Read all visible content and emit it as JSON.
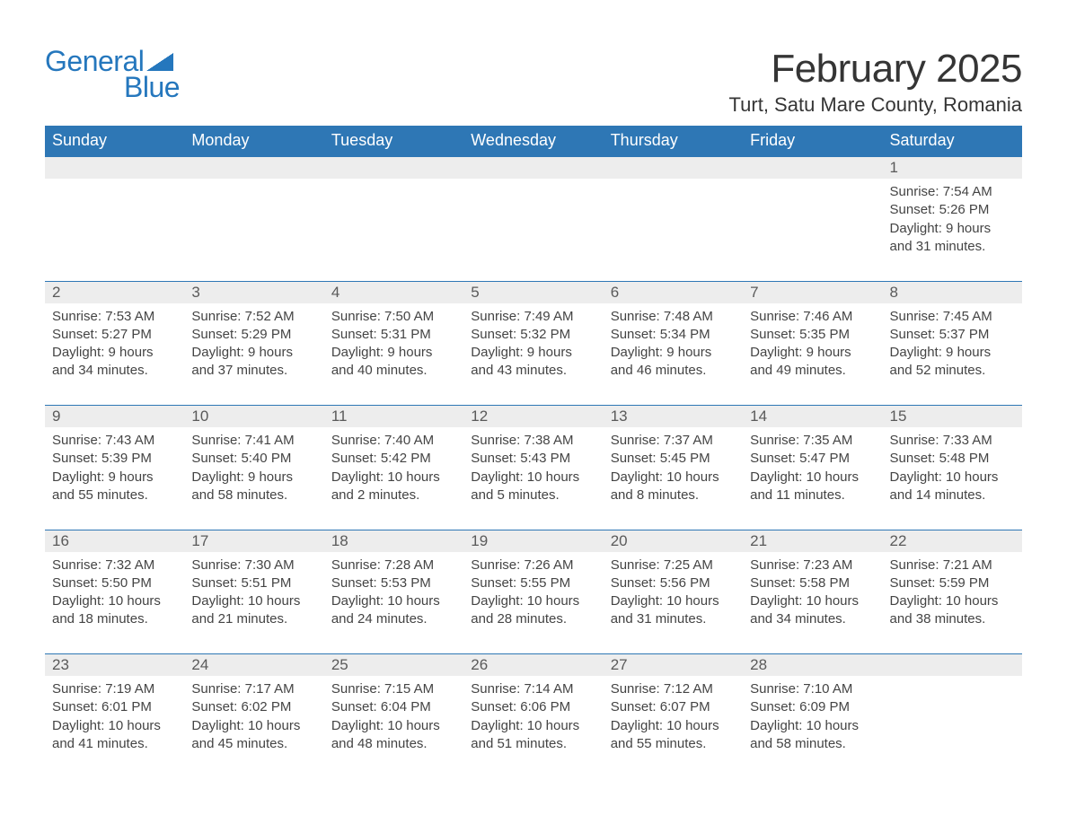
{
  "brand": {
    "word1": "General",
    "word2": "Blue",
    "brand_color": "#2577bd"
  },
  "title": "February 2025",
  "location": "Turt, Satu Mare County, Romania",
  "colors": {
    "header_bg": "#2e77b5",
    "header_text": "#ffffff",
    "daynum_bg": "#ededed",
    "daynum_border": "#2e77b5",
    "body_text": "#444444",
    "page_bg": "#ffffff"
  },
  "day_headers": [
    "Sunday",
    "Monday",
    "Tuesday",
    "Wednesday",
    "Thursday",
    "Friday",
    "Saturday"
  ],
  "weeks": [
    [
      null,
      null,
      null,
      null,
      null,
      null,
      {
        "n": "1",
        "sr": "Sunrise: 7:54 AM",
        "ss": "Sunset: 5:26 PM",
        "d1": "Daylight: 9 hours",
        "d2": "and 31 minutes."
      }
    ],
    [
      {
        "n": "2",
        "sr": "Sunrise: 7:53 AM",
        "ss": "Sunset: 5:27 PM",
        "d1": "Daylight: 9 hours",
        "d2": "and 34 minutes."
      },
      {
        "n": "3",
        "sr": "Sunrise: 7:52 AM",
        "ss": "Sunset: 5:29 PM",
        "d1": "Daylight: 9 hours",
        "d2": "and 37 minutes."
      },
      {
        "n": "4",
        "sr": "Sunrise: 7:50 AM",
        "ss": "Sunset: 5:31 PM",
        "d1": "Daylight: 9 hours",
        "d2": "and 40 minutes."
      },
      {
        "n": "5",
        "sr": "Sunrise: 7:49 AM",
        "ss": "Sunset: 5:32 PM",
        "d1": "Daylight: 9 hours",
        "d2": "and 43 minutes."
      },
      {
        "n": "6",
        "sr": "Sunrise: 7:48 AM",
        "ss": "Sunset: 5:34 PM",
        "d1": "Daylight: 9 hours",
        "d2": "and 46 minutes."
      },
      {
        "n": "7",
        "sr": "Sunrise: 7:46 AM",
        "ss": "Sunset: 5:35 PM",
        "d1": "Daylight: 9 hours",
        "d2": "and 49 minutes."
      },
      {
        "n": "8",
        "sr": "Sunrise: 7:45 AM",
        "ss": "Sunset: 5:37 PM",
        "d1": "Daylight: 9 hours",
        "d2": "and 52 minutes."
      }
    ],
    [
      {
        "n": "9",
        "sr": "Sunrise: 7:43 AM",
        "ss": "Sunset: 5:39 PM",
        "d1": "Daylight: 9 hours",
        "d2": "and 55 minutes."
      },
      {
        "n": "10",
        "sr": "Sunrise: 7:41 AM",
        "ss": "Sunset: 5:40 PM",
        "d1": "Daylight: 9 hours",
        "d2": "and 58 minutes."
      },
      {
        "n": "11",
        "sr": "Sunrise: 7:40 AM",
        "ss": "Sunset: 5:42 PM",
        "d1": "Daylight: 10 hours",
        "d2": "and 2 minutes."
      },
      {
        "n": "12",
        "sr": "Sunrise: 7:38 AM",
        "ss": "Sunset: 5:43 PM",
        "d1": "Daylight: 10 hours",
        "d2": "and 5 minutes."
      },
      {
        "n": "13",
        "sr": "Sunrise: 7:37 AM",
        "ss": "Sunset: 5:45 PM",
        "d1": "Daylight: 10 hours",
        "d2": "and 8 minutes."
      },
      {
        "n": "14",
        "sr": "Sunrise: 7:35 AM",
        "ss": "Sunset: 5:47 PM",
        "d1": "Daylight: 10 hours",
        "d2": "and 11 minutes."
      },
      {
        "n": "15",
        "sr": "Sunrise: 7:33 AM",
        "ss": "Sunset: 5:48 PM",
        "d1": "Daylight: 10 hours",
        "d2": "and 14 minutes."
      }
    ],
    [
      {
        "n": "16",
        "sr": "Sunrise: 7:32 AM",
        "ss": "Sunset: 5:50 PM",
        "d1": "Daylight: 10 hours",
        "d2": "and 18 minutes."
      },
      {
        "n": "17",
        "sr": "Sunrise: 7:30 AM",
        "ss": "Sunset: 5:51 PM",
        "d1": "Daylight: 10 hours",
        "d2": "and 21 minutes."
      },
      {
        "n": "18",
        "sr": "Sunrise: 7:28 AM",
        "ss": "Sunset: 5:53 PM",
        "d1": "Daylight: 10 hours",
        "d2": "and 24 minutes."
      },
      {
        "n": "19",
        "sr": "Sunrise: 7:26 AM",
        "ss": "Sunset: 5:55 PM",
        "d1": "Daylight: 10 hours",
        "d2": "and 28 minutes."
      },
      {
        "n": "20",
        "sr": "Sunrise: 7:25 AM",
        "ss": "Sunset: 5:56 PM",
        "d1": "Daylight: 10 hours",
        "d2": "and 31 minutes."
      },
      {
        "n": "21",
        "sr": "Sunrise: 7:23 AM",
        "ss": "Sunset: 5:58 PM",
        "d1": "Daylight: 10 hours",
        "d2": "and 34 minutes."
      },
      {
        "n": "22",
        "sr": "Sunrise: 7:21 AM",
        "ss": "Sunset: 5:59 PM",
        "d1": "Daylight: 10 hours",
        "d2": "and 38 minutes."
      }
    ],
    [
      {
        "n": "23",
        "sr": "Sunrise: 7:19 AM",
        "ss": "Sunset: 6:01 PM",
        "d1": "Daylight: 10 hours",
        "d2": "and 41 minutes."
      },
      {
        "n": "24",
        "sr": "Sunrise: 7:17 AM",
        "ss": "Sunset: 6:02 PM",
        "d1": "Daylight: 10 hours",
        "d2": "and 45 minutes."
      },
      {
        "n": "25",
        "sr": "Sunrise: 7:15 AM",
        "ss": "Sunset: 6:04 PM",
        "d1": "Daylight: 10 hours",
        "d2": "and 48 minutes."
      },
      {
        "n": "26",
        "sr": "Sunrise: 7:14 AM",
        "ss": "Sunset: 6:06 PM",
        "d1": "Daylight: 10 hours",
        "d2": "and 51 minutes."
      },
      {
        "n": "27",
        "sr": "Sunrise: 7:12 AM",
        "ss": "Sunset: 6:07 PM",
        "d1": "Daylight: 10 hours",
        "d2": "and 55 minutes."
      },
      {
        "n": "28",
        "sr": "Sunrise: 7:10 AM",
        "ss": "Sunset: 6:09 PM",
        "d1": "Daylight: 10 hours",
        "d2": "and 58 minutes."
      },
      null
    ]
  ]
}
